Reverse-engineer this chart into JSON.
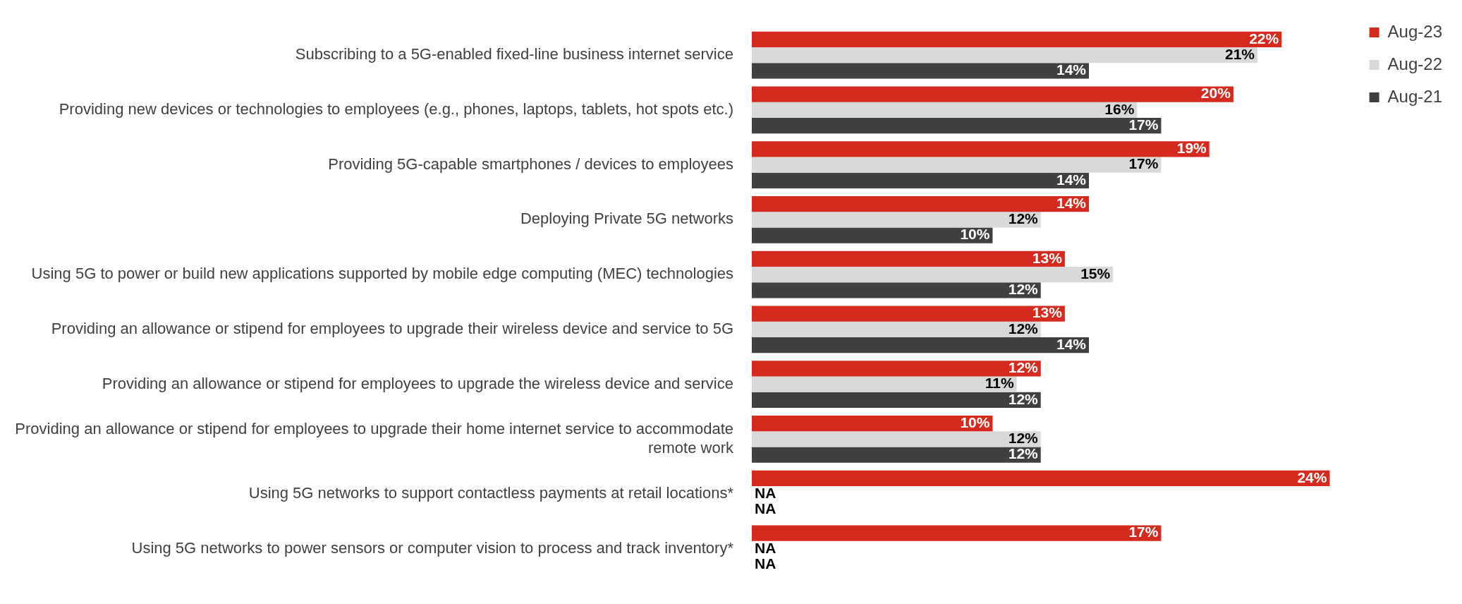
{
  "chart_data": {
    "type": "bar",
    "orientation": "horizontal",
    "legend": "top right",
    "categories": [
      "Subscribing to a 5G-enabled fixed-line business internet service",
      "Providing new devices or technologies to employees (e.g., phones, laptops, tablets, hot spots etc.)",
      "Providing 5G-capable smartphones / devices to employees",
      "Deploying Private 5G networks",
      "Using 5G to power or build new applications supported by mobile edge computing (MEC) technologies",
      "Providing an allowance or stipend for employees to upgrade their wireless device and service to 5G",
      "Providing an allowance or stipend for employees to upgrade the wireless device and service",
      "Providing an allowance or stipend for employees to upgrade their home internet service to accommodate remote work",
      "Using 5G networks to support contactless payments at retail locations*",
      "Using 5G networks to power sensors or computer vision to process and track inventory*"
    ],
    "series": [
      {
        "name": "Aug-23",
        "color": "#d52b1e",
        "values": [
          22,
          20,
          19,
          14,
          13,
          13,
          12,
          10,
          24,
          17
        ],
        "value_labels": [
          "22%",
          "20%",
          "19%",
          "14%",
          "13%",
          "13%",
          "12%",
          "10%",
          "24%",
          "17%"
        ]
      },
      {
        "name": "Aug-22",
        "color": "#d9d9d9",
        "values": [
          21,
          16,
          17,
          12,
          15,
          12,
          11,
          12,
          null,
          null
        ],
        "value_labels": [
          "21%",
          "16%",
          "17%",
          "12%",
          "15%",
          "12%",
          "11%",
          "12%",
          "NA",
          "NA"
        ]
      },
      {
        "name": "Aug-21",
        "color": "#404040",
        "values": [
          14,
          17,
          14,
          10,
          12,
          14,
          12,
          12,
          null,
          null
        ],
        "value_labels": [
          "14%",
          "17%",
          "14%",
          "10%",
          "12%",
          "14%",
          "12%",
          "12%",
          "NA",
          "NA"
        ]
      }
    ]
  }
}
